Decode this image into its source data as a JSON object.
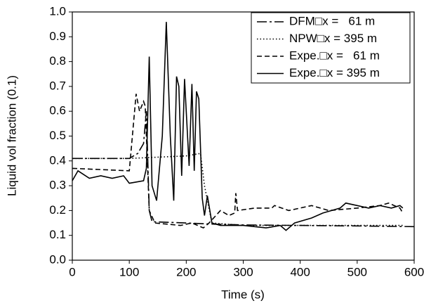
{
  "chart_data": {
    "type": "line",
    "xlabel": "Time (s)",
    "ylabel": "Liquid vol fraction (0.1)",
    "xlim": [
      0,
      600
    ],
    "xticks": [
      0,
      100,
      200,
      300,
      400,
      500,
      600
    ],
    "ylim": [
      0,
      1
    ],
    "yticks": [
      {
        "value": 0,
        "label": "0.0"
      },
      0.1,
      0.2,
      0.3,
      0.4,
      0.5,
      0.6,
      0.7,
      0.8,
      0.9,
      {
        "value": 1,
        "label": "1.0"
      }
    ],
    "legend": "upper right",
    "series": [
      {
        "name": "DFM□x =   61 m",
        "color": "#000000",
        "dash": "14,4,3,4",
        "x": [
          0,
          100,
          115,
          125,
          130,
          135,
          140,
          200,
          250,
          300,
          400,
          500,
          600
        ],
        "values": [
          0.41,
          0.41,
          0.43,
          0.47,
          0.6,
          0.2,
          0.155,
          0.15,
          0.145,
          0.142,
          0.14,
          0.138,
          0.135
        ]
      },
      {
        "name": "NPW□x = 395 m",
        "color": "#000000",
        "dash": "1.5,3",
        "x": [
          0,
          100,
          200,
          225,
          232,
          245,
          300,
          400,
          500,
          580
        ],
        "values": [
          0.41,
          0.41,
          0.42,
          0.43,
          0.3,
          0.15,
          0.14,
          0.14,
          0.14,
          0.14
        ]
      },
      {
        "name": "Expe.□x =   61 m",
        "color": "#000000",
        "dash": "7,4",
        "x": [
          0,
          100,
          112,
          118,
          125,
          128,
          135,
          145,
          190,
          210,
          230,
          240,
          260,
          275,
          285,
          287,
          290,
          320,
          350,
          355,
          380,
          420,
          450,
          500,
          540,
          555,
          575,
          580
        ],
        "values": [
          0.37,
          0.36,
          0.67,
          0.6,
          0.64,
          0.62,
          0.2,
          0.15,
          0.14,
          0.15,
          0.13,
          0.15,
          0.2,
          0.18,
          0.19,
          0.27,
          0.2,
          0.21,
          0.21,
          0.22,
          0.2,
          0.22,
          0.2,
          0.21,
          0.22,
          0.23,
          0.21,
          0.19
        ]
      },
      {
        "name": "Expe.□x = 395 m",
        "color": "#000000",
        "dash": "none",
        "x": [
          0,
          10,
          30,
          50,
          70,
          90,
          100,
          125,
          130,
          135,
          140,
          148,
          158,
          165,
          172,
          178,
          183,
          187,
          192,
          197,
          205,
          210,
          214,
          218,
          222,
          228,
          232,
          237,
          245,
          260,
          300,
          340,
          365,
          375,
          390,
          420,
          440,
          470,
          480,
          500,
          520,
          540,
          560,
          575,
          580
        ],
        "values": [
          0.32,
          0.36,
          0.33,
          0.34,
          0.33,
          0.34,
          0.31,
          0.32,
          0.37,
          0.82,
          0.3,
          0.24,
          0.5,
          0.96,
          0.5,
          0.24,
          0.74,
          0.7,
          0.34,
          0.73,
          0.38,
          0.71,
          0.36,
          0.68,
          0.65,
          0.25,
          0.18,
          0.26,
          0.15,
          0.14,
          0.14,
          0.13,
          0.14,
          0.12,
          0.15,
          0.17,
          0.19,
          0.21,
          0.23,
          0.22,
          0.21,
          0.22,
          0.21,
          0.22,
          0.21
        ]
      }
    ]
  }
}
